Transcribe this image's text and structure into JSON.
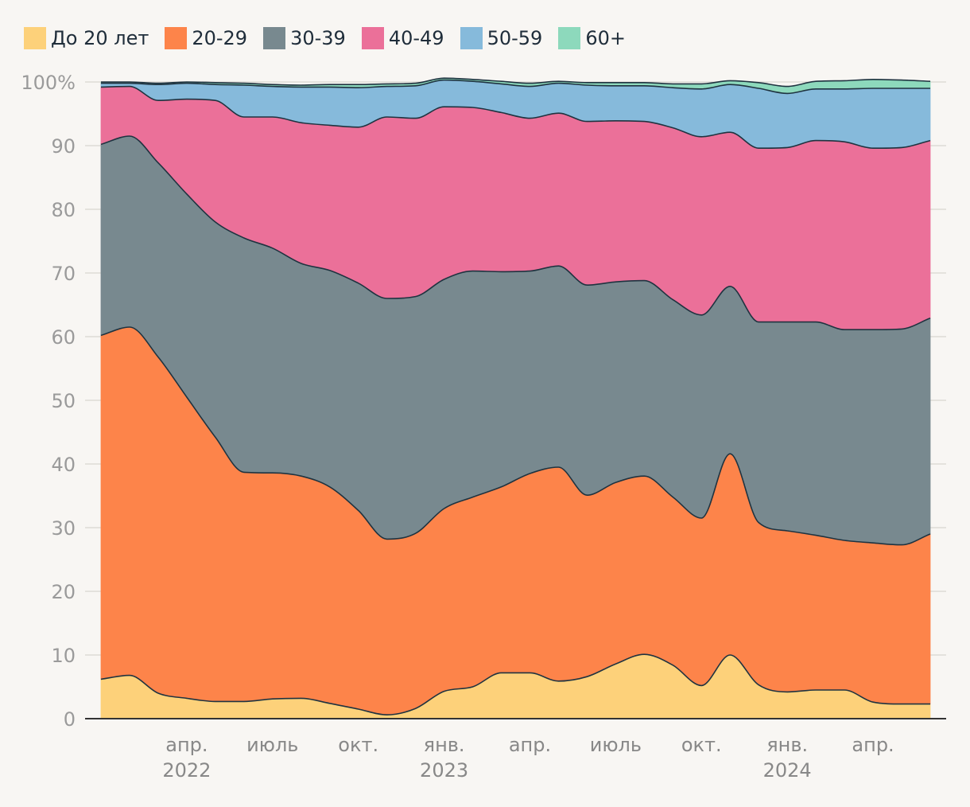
{
  "chart_data": {
    "type": "area",
    "stacked": true,
    "title": "",
    "xlabel": "",
    "ylabel": "",
    "ylim": [
      0,
      100
    ],
    "y_ticks": [
      "0",
      "10",
      "20",
      "30",
      "40",
      "50",
      "60",
      "70",
      "80",
      "90",
      "100%"
    ],
    "y_tick_values": [
      0,
      10,
      20,
      30,
      40,
      50,
      60,
      70,
      80,
      90,
      100
    ],
    "x_domain": [
      "2022-01",
      "2024-07"
    ],
    "x_ticks": [
      {
        "month": "2022-04",
        "label": "апр.",
        "year": "2022"
      },
      {
        "month": "2022-07",
        "label": "июль",
        "year": ""
      },
      {
        "month": "2022-10",
        "label": "окт.",
        "year": ""
      },
      {
        "month": "2023-01",
        "label": "янв.",
        "year": "2023"
      },
      {
        "month": "2023-04",
        "label": "апр.",
        "year": ""
      },
      {
        "month": "2023-07",
        "label": "июль",
        "year": ""
      },
      {
        "month": "2023-10",
        "label": "окт.",
        "year": ""
      },
      {
        "month": "2024-01",
        "label": "янв.",
        "year": "2024"
      },
      {
        "month": "2024-04",
        "label": "апр.",
        "year": ""
      }
    ],
    "legend_position": "top-left",
    "grid": true,
    "x": [
      "2022-01",
      "2022-02",
      "2022-03",
      "2022-04",
      "2022-05",
      "2022-06",
      "2022-07",
      "2022-08",
      "2022-09",
      "2022-10",
      "2022-11",
      "2022-12",
      "2023-01",
      "2023-02",
      "2023-03",
      "2023-04",
      "2023-05",
      "2023-06",
      "2023-07",
      "2023-08",
      "2023-09",
      "2023-10",
      "2023-11",
      "2023-12",
      "2024-01",
      "2024-02",
      "2024-03",
      "2024-04",
      "2024-05",
      "2024-06"
    ],
    "series": [
      {
        "name": "До 20 лет",
        "color": "#fdd17a",
        "values": [
          6.2,
          6.8,
          4.0,
          3.2,
          2.7,
          2.7,
          3.1,
          3.2,
          2.4,
          1.5,
          0.6,
          1.6,
          4.3,
          5.0,
          7.2,
          7.2,
          5.9,
          6.6,
          8.6,
          10.1,
          8.4,
          5.2,
          10.0,
          5.3,
          4.2,
          4.5,
          4.5,
          2.6,
          2.3,
          2.3
        ]
      },
      {
        "name": "20-29",
        "color": "#fd844a",
        "values": [
          54.0,
          54.7,
          52.8,
          47.3,
          41.5,
          36.0,
          35.5,
          34.9,
          34.0,
          31.2,
          27.6,
          27.5,
          28.7,
          29.8,
          29.2,
          31.3,
          33.6,
          28.5,
          28.5,
          28.0,
          26.4,
          26.3,
          31.6,
          25.5,
          25.3,
          24.3,
          23.5,
          25.0,
          25.0,
          26.7
        ]
      },
      {
        "name": "30-39",
        "color": "#78898f",
        "values": [
          30.0,
          30.0,
          30.5,
          31.9,
          33.8,
          36.8,
          35.3,
          33.4,
          34.0,
          35.7,
          37.8,
          37.2,
          36.0,
          35.5,
          33.8,
          31.8,
          31.6,
          33.0,
          31.5,
          30.7,
          31.0,
          31.9,
          26.3,
          31.5,
          32.8,
          33.5,
          33.1,
          33.5,
          33.9,
          33.9
        ]
      },
      {
        "name": "40-49",
        "color": "#eb7099",
        "values": [
          9.0,
          7.8,
          9.8,
          14.9,
          19.1,
          19.0,
          20.6,
          22.1,
          22.8,
          24.5,
          28.5,
          28.0,
          27.1,
          25.7,
          25.0,
          24.0,
          24.0,
          25.7,
          25.3,
          25.0,
          27.0,
          28.0,
          24.2,
          27.3,
          27.4,
          28.5,
          29.5,
          28.5,
          28.5,
          27.9
        ]
      },
      {
        "name": "50-59",
        "color": "#86badb",
        "values": [
          0.6,
          0.5,
          2.5,
          2.5,
          2.5,
          5.0,
          4.8,
          5.6,
          6.0,
          6.2,
          4.8,
          5.1,
          4.2,
          4.1,
          4.5,
          5.0,
          4.7,
          5.7,
          5.5,
          5.6,
          6.3,
          7.5,
          7.5,
          9.4,
          8.5,
          8.1,
          8.3,
          9.4,
          9.3,
          8.2
        ]
      },
      {
        "name": "60+",
        "color": "#8dd9bc",
        "values": [
          0.2,
          0.2,
          0.2,
          0.2,
          0.3,
          0.3,
          0.3,
          0.3,
          0.4,
          0.5,
          0.4,
          0.4,
          0.3,
          0.3,
          0.4,
          0.5,
          0.3,
          0.4,
          0.5,
          0.5,
          0.6,
          0.8,
          0.6,
          0.9,
          1.1,
          1.2,
          1.3,
          1.4,
          1.3,
          1.1
        ]
      }
    ]
  }
}
